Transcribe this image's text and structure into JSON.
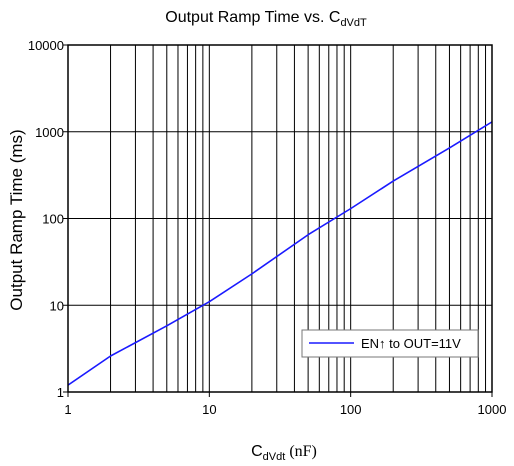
{
  "chart_data": {
    "type": "line",
    "title": {
      "main": "Output Ramp Time vs. C",
      "sub": "dVdT"
    },
    "xlabel": {
      "main": "C",
      "sub": "dVdt",
      "unit": " (nF)"
    },
    "ylabel": "Output Ramp Time (ms)",
    "x_scale": "log",
    "y_scale": "log",
    "xlim": [
      1,
      1000
    ],
    "ylim": [
      1,
      10000
    ],
    "x_ticks": [
      {
        "value": 1,
        "label": "1"
      },
      {
        "value": 10,
        "label": "10"
      },
      {
        "value": 100,
        "label": "100"
      },
      {
        "value": 1000,
        "label": "1000"
      }
    ],
    "y_ticks": [
      {
        "value": 1,
        "label": "1"
      },
      {
        "value": 10,
        "label": "10"
      },
      {
        "value": 100,
        "label": "100"
      },
      {
        "value": 1000,
        "label": "1000"
      },
      {
        "value": 10000,
        "label": "10000"
      }
    ],
    "grid": {
      "vertical": "major and minor",
      "horizontal": "major only"
    },
    "legend_position": "lower-right",
    "series": [
      {
        "name": "EN↑ to OUT=11V",
        "color": "#1a1aff",
        "x": [
          1,
          2,
          5,
          10,
          20,
          50,
          100,
          200,
          500,
          1000
        ],
        "y": [
          1.2,
          2.6,
          5.8,
          11,
          23,
          65,
          130,
          270,
          650,
          1300
        ]
      }
    ]
  }
}
